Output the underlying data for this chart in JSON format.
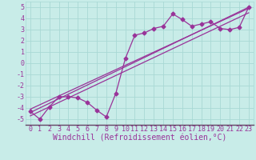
{
  "xlabel": "Windchill (Refroidissement éolien,°C)",
  "background_color": "#c8ece8",
  "grid_color": "#a8d8d4",
  "line_color": "#993399",
  "xlim": [
    -0.5,
    23.5
  ],
  "ylim": [
    -5.5,
    5.5
  ],
  "yticks": [
    -5,
    -4,
    -3,
    -2,
    -1,
    0,
    1,
    2,
    3,
    4,
    5
  ],
  "xticks": [
    0,
    1,
    2,
    3,
    4,
    5,
    6,
    7,
    8,
    9,
    10,
    11,
    12,
    13,
    14,
    15,
    16,
    17,
    18,
    19,
    20,
    21,
    22,
    23
  ],
  "series1_x": [
    0,
    1,
    2,
    3,
    4,
    5,
    6,
    7,
    8,
    9,
    10,
    11,
    12,
    13,
    14,
    15,
    16,
    17,
    18,
    19,
    20,
    21,
    22,
    23
  ],
  "series1_y": [
    -4.3,
    -5.0,
    -3.9,
    -3.0,
    -3.0,
    -3.1,
    -3.5,
    -4.2,
    -4.8,
    -2.7,
    0.4,
    2.5,
    2.7,
    3.1,
    3.3,
    4.4,
    3.9,
    3.3,
    3.5,
    3.7,
    3.1,
    3.0,
    3.2,
    5.0
  ],
  "reg_lines": [
    {
      "x0": 0,
      "y0": -4.4,
      "x1": 23,
      "y1": 5.0
    },
    {
      "x0": 0,
      "y0": -4.7,
      "x1": 23,
      "y1": 4.5
    },
    {
      "x0": 0,
      "y0": -4.1,
      "x1": 23,
      "y1": 4.9
    }
  ],
  "font_family": "monospace",
  "tick_fontsize": 6,
  "xlabel_fontsize": 7
}
